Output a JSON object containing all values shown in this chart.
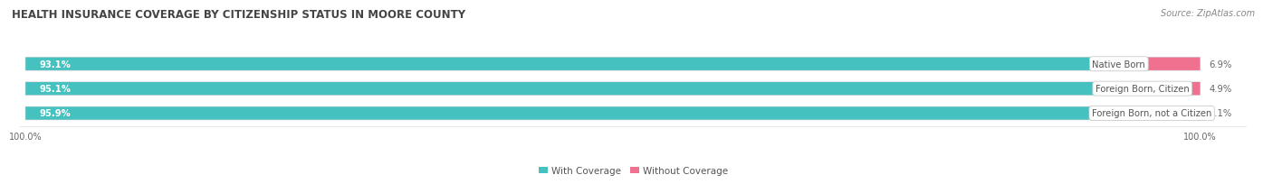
{
  "title": "HEALTH INSURANCE COVERAGE BY CITIZENSHIP STATUS IN MOORE COUNTY",
  "source": "Source: ZipAtlas.com",
  "categories": [
    "Native Born",
    "Foreign Born, Citizen",
    "Foreign Born, not a Citizen"
  ],
  "with_coverage": [
    93.1,
    95.1,
    95.9
  ],
  "without_coverage": [
    6.9,
    4.9,
    4.1
  ],
  "color_with": "#45c1c0",
  "color_without": "#f07090",
  "color_track": "#e8e8e8",
  "color_title": "#444444",
  "color_source": "#888888",
  "color_pct_inside": "#ffffff",
  "color_pct_outside": "#666666",
  "color_label_text": "#555555",
  "color_label_border": "#cccccc",
  "title_fontsize": 8.5,
  "label_fontsize": 7.2,
  "tick_fontsize": 7.0,
  "source_fontsize": 7.0,
  "legend_fontsize": 7.5,
  "fig_width": 14.06,
  "fig_height": 1.96
}
